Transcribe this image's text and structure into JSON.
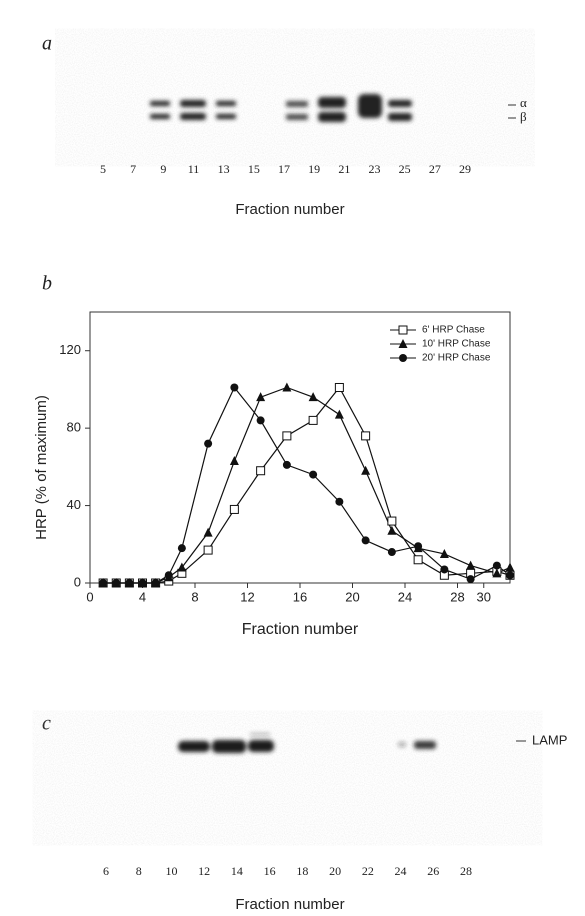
{
  "panel_a": {
    "label": "a",
    "lanes": [
      "5",
      "7",
      "9",
      "11",
      "13",
      "15",
      "17",
      "19",
      "21",
      "23",
      "25",
      "27",
      "29"
    ],
    "band_labels": [
      "α",
      "β"
    ],
    "xlabel": "Fraction number"
  },
  "chart_data": {
    "type": "line",
    "panel_label": "b",
    "xlabel": "Fraction number",
    "ylabel": "HRP (% of maximum)",
    "x": [
      1,
      2,
      3,
      4,
      5,
      6,
      7,
      9,
      11,
      13,
      15,
      17,
      19,
      21,
      23,
      25,
      27,
      29,
      31,
      32
    ],
    "series": [
      {
        "name": "6' HRP Chase",
        "color": "#111",
        "marker": "open-square",
        "values": [
          0,
          0,
          0,
          0,
          0,
          1,
          5,
          17,
          38,
          58,
          76,
          84,
          101,
          76,
          32,
          12,
          4,
          5,
          6,
          4
        ]
      },
      {
        "name": "10' HRP Chase",
        "color": "#111",
        "marker": "triangle",
        "values": [
          0,
          0,
          0,
          0,
          0,
          3,
          8,
          26,
          63,
          96,
          101,
          96,
          87,
          58,
          27,
          18,
          15,
          9,
          5,
          8
        ]
      },
      {
        "name": "20' HRP Chase",
        "color": "#111",
        "marker": "circle",
        "values": [
          0,
          0,
          0,
          0,
          0,
          4,
          18,
          72,
          101,
          84,
          61,
          56,
          42,
          22,
          16,
          19,
          7,
          2,
          9,
          4
        ]
      }
    ],
    "xlim": [
      0,
      32
    ],
    "xticks": [
      0,
      4,
      8,
      12,
      16,
      20,
      24,
      28,
      30
    ],
    "ylim": [
      0,
      140
    ],
    "yticks": [
      0,
      40,
      80,
      120
    ],
    "grid": false,
    "legend": "upper right"
  },
  "panel_c": {
    "label": "c",
    "lanes": [
      "6",
      "8",
      "10",
      "12",
      "14",
      "16",
      "18",
      "20",
      "22",
      "24",
      "26",
      "28"
    ],
    "band_label": "LAMP",
    "xlabel": "Fraction number"
  }
}
